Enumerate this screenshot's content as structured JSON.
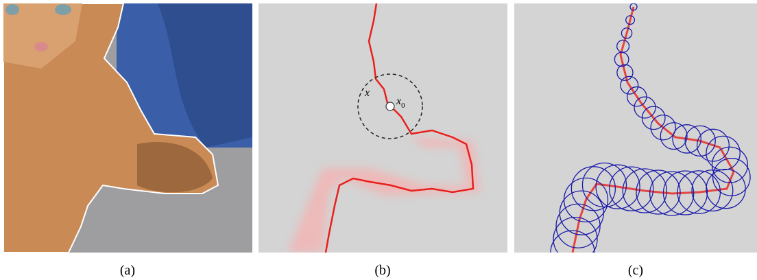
{
  "panels": [
    {
      "label": "(a)"
    },
    {
      "label": "(b)"
    },
    {
      "label": "(c)"
    }
  ],
  "annotations": {
    "point": "x",
    "center": {
      "base": "x",
      "sub": "0"
    }
  }
}
